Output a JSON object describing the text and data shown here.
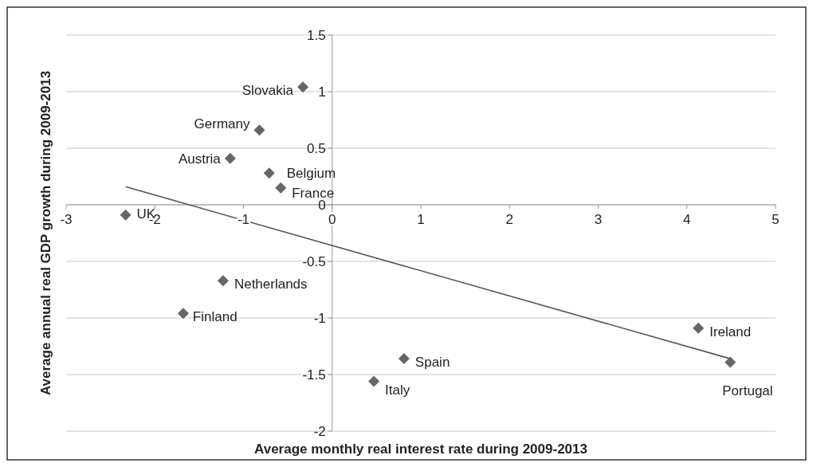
{
  "chart_data": {
    "type": "scatter",
    "xlabel": "Average monthly real interest rate during 2009-2013",
    "ylabel": "Average annual real GDP growth during 2009-2013",
    "xlim": [
      -3,
      5
    ],
    "xticks": [
      -3,
      -2,
      -1,
      0,
      1,
      2,
      3,
      4,
      5
    ],
    "ylim": [
      -2,
      1.5
    ],
    "yticks": [
      -2,
      -1.5,
      -1,
      -0.5,
      0,
      0.5,
      1,
      1.5
    ],
    "grid": "y",
    "series": [
      {
        "marker": "diamond",
        "color": "#666666",
        "x": [
          -0.33,
          -0.82,
          -1.15,
          -0.71,
          -0.58,
          -2.33,
          -1.23,
          -1.68,
          0.47,
          0.81,
          4.13,
          4.49
        ],
        "values": [
          1.04,
          0.66,
          0.41,
          0.28,
          0.15,
          -0.09,
          -0.67,
          -0.96,
          -1.56,
          -1.36,
          -1.09,
          -1.39
        ]
      },
      {
        "type": "line",
        "marker": "none",
        "color": "#555555",
        "x": [
          -2.33,
          4.49
        ],
        "values": [
          0.16,
          -1.36
        ]
      }
    ],
    "annotations": [
      {
        "text": "Slovakia",
        "x": -0.33,
        "y": 1.04
      },
      {
        "text": "Germany",
        "x": -0.82,
        "y": 0.66
      },
      {
        "text": "Austria",
        "x": -1.15,
        "y": 0.41
      },
      {
        "text": "Belgium",
        "x": -0.71,
        "y": 0.28
      },
      {
        "text": "France",
        "x": -0.58,
        "y": 0.15
      },
      {
        "text": "UK",
        "x": -2.33,
        "y": -0.09
      },
      {
        "text": "Netherlands",
        "x": -1.23,
        "y": -0.67
      },
      {
        "text": "Finland",
        "x": -1.68,
        "y": -0.96
      },
      {
        "text": "Italy",
        "x": 0.47,
        "y": -1.56
      },
      {
        "text": "Spain",
        "x": 0.81,
        "y": -1.36
      },
      {
        "text": "Ireland",
        "x": 4.13,
        "y": -1.09
      },
      {
        "text": "Portugal",
        "x": 4.49,
        "y": -1.39
      }
    ]
  }
}
